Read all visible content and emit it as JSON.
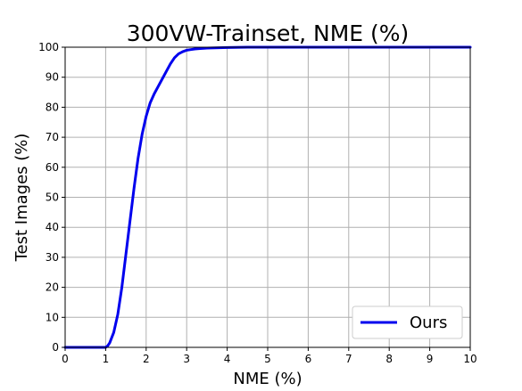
{
  "chart_data": {
    "type": "line",
    "title": "300VW-Trainset, NME (%)",
    "xlabel": "NME (%)",
    "ylabel": "Test Images (%)",
    "xlim": [
      0,
      10
    ],
    "ylim": [
      0,
      100
    ],
    "xticks": [
      "0",
      "1",
      "2",
      "3",
      "4",
      "5",
      "6",
      "7",
      "8",
      "9",
      "10"
    ],
    "yticks": [
      "0",
      "10",
      "20",
      "30",
      "40",
      "50",
      "60",
      "70",
      "80",
      "90",
      "100"
    ],
    "grid": true,
    "legend_position": "bottom-right",
    "series": [
      {
        "name": "Ours",
        "color": "#0000ee",
        "x": [
          0,
          0.5,
          1.0,
          1.05,
          1.1,
          1.2,
          1.3,
          1.4,
          1.5,
          1.6,
          1.7,
          1.8,
          1.9,
          2.0,
          2.1,
          2.2,
          2.3,
          2.4,
          2.5,
          2.6,
          2.7,
          2.8,
          2.9,
          3.0,
          3.1,
          3.2,
          3.3,
          3.5,
          3.8,
          4.0,
          4.5,
          5.0,
          6.0,
          7.0,
          8.0,
          9.0,
          10.0
        ],
        "y": [
          0,
          0,
          0,
          0.5,
          1.5,
          5,
          11,
          20,
          31,
          42,
          53,
          63,
          71,
          77,
          81.5,
          84.5,
          87,
          89.5,
          92,
          94.5,
          96.5,
          97.8,
          98.5,
          99,
          99.2,
          99.4,
          99.5,
          99.7,
          99.8,
          99.9,
          100,
          100,
          100,
          100,
          100,
          100,
          100
        ]
      }
    ]
  }
}
